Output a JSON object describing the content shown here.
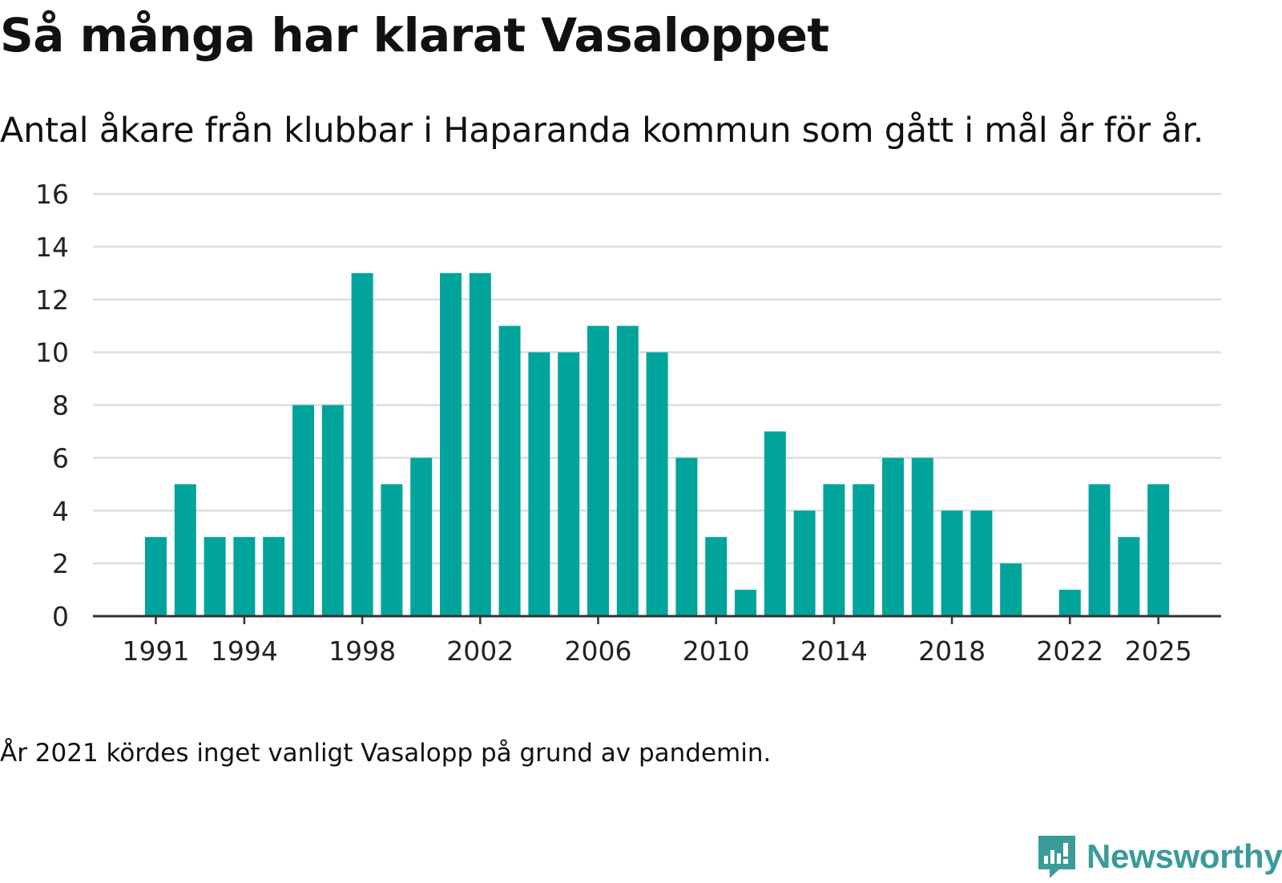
{
  "title": "Så många har klarat Vasaloppet",
  "subtitle": "Antal åkare från klubbar i Haparanda kommun som gått i mål år för år.",
  "note": "År 2021 kördes inget vanligt Vasalopp på grund av pandemin.",
  "brand": {
    "name": "Newsworthy",
    "logo_icon": "newsworthy-bar-chart-icon"
  },
  "colors": {
    "bar": "#00a49b",
    "grid": "#dddddd",
    "axis": "#333333",
    "brand": "#3b9b9b"
  },
  "chart_data": {
    "type": "bar",
    "title": "Så många har klarat Vasaloppet",
    "xlabel": "",
    "ylabel": "",
    "ylim": [
      0,
      16
    ],
    "yticks": [
      0,
      2,
      4,
      6,
      8,
      10,
      12,
      14,
      16
    ],
    "xtick_labels": [
      "1991",
      "1994",
      "1998",
      "2002",
      "2006",
      "2010",
      "2014",
      "2018",
      "2022",
      "2025"
    ],
    "grid": true,
    "categories": [
      "1991",
      "1992",
      "1993",
      "1994",
      "1995",
      "1996",
      "1997",
      "1998",
      "1999",
      "2000",
      "2001",
      "2002",
      "2003",
      "2004",
      "2005",
      "2006",
      "2007",
      "2008",
      "2009",
      "2010",
      "2011",
      "2012",
      "2013",
      "2014",
      "2015",
      "2016",
      "2017",
      "2018",
      "2019",
      "2020",
      "2021",
      "2022",
      "2023",
      "2024",
      "2025"
    ],
    "values": [
      3,
      5,
      3,
      3,
      3,
      8,
      8,
      13,
      5,
      6,
      13,
      13,
      11,
      10,
      10,
      11,
      11,
      10,
      6,
      3,
      1,
      7,
      4,
      5,
      5,
      6,
      6,
      4,
      4,
      2,
      0,
      1,
      5,
      3,
      5
    ]
  }
}
